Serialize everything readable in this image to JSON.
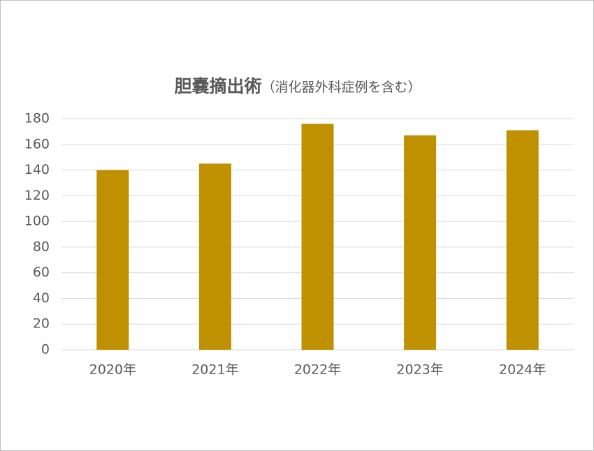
{
  "chart_data": {
    "type": "bar",
    "title": "胆嚢摘出術",
    "subtitle": "（消化器外科症例を含む）",
    "categories": [
      "2020年",
      "2021年",
      "2022年",
      "2023年",
      "2024年"
    ],
    "values": [
      140,
      145,
      176,
      167,
      171
    ],
    "color": "#bf9000",
    "ylim": [
      0,
      180
    ],
    "yticks": [
      0,
      20,
      40,
      60,
      80,
      100,
      120,
      140,
      160,
      180
    ],
    "grid": true
  }
}
